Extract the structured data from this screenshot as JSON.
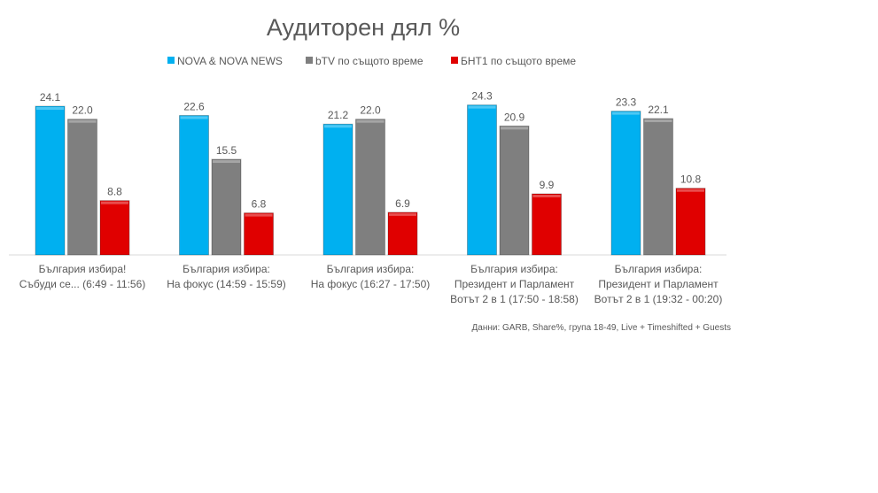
{
  "chart_data": {
    "type": "bar",
    "title": "Аудиторен дял %",
    "categories": [
      [
        "България избира!",
        "Събуди се... (6:49 - 11:56)"
      ],
      [
        "България избира:",
        "На фокус (14:59 - 15:59)"
      ],
      [
        "България избира:",
        "На фокус (16:27 - 17:50)"
      ],
      [
        "България избира:",
        "Президент и Парламент",
        "Вотът 2 в 1 (17:50 - 18:58)"
      ],
      [
        "България избира:",
        "Президент и Парламент",
        "Вотът 2 в 1 (19:32 - 00:20)"
      ]
    ],
    "series": [
      {
        "name": "NOVA & NOVA NEWS",
        "color": "#00B0F0",
        "values": [
          24.1,
          22.6,
          21.2,
          24.3,
          23.3
        ]
      },
      {
        "name": "bTV по същото време",
        "color": "#7F7F7F",
        "values": [
          22.0,
          15.5,
          22.0,
          20.9,
          22.1
        ]
      },
      {
        "name": "БНТ1 по същото време",
        "color": "#E00000",
        "values": [
          8.8,
          6.8,
          6.9,
          9.9,
          10.8
        ]
      }
    ],
    "ylim": [
      0,
      25
    ],
    "grid": false,
    "legend": "top",
    "data_labels": true,
    "footnote": "Данни: GARB,  Share%, група 18-49, Live + Timeshifted + Guests"
  }
}
